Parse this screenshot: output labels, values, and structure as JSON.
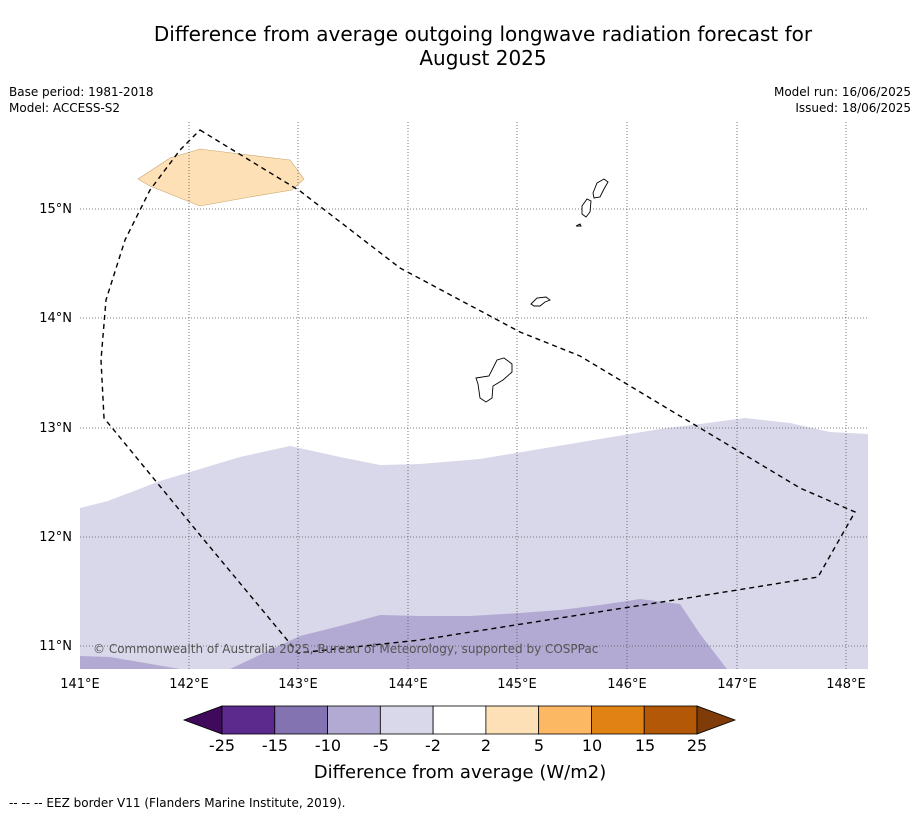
{
  "title": {
    "line1": "Difference from average outgoing longwave radiation forecast for",
    "line2": "August 2025"
  },
  "meta": {
    "base_period": "Base period: 1981-2018",
    "model": "Model: ACCESS-S2",
    "model_run": "Model run: 16/06/2025",
    "issued": "Issued: 18/06/2025"
  },
  "map": {
    "lon_labels": [
      "141°E",
      "142°E",
      "143°E",
      "144°E",
      "145°E",
      "146°E",
      "147°E",
      "148°E"
    ],
    "lat_labels": [
      "15°N",
      "14°N",
      "13°N",
      "12°N",
      "11°N"
    ],
    "copyright": "© Commonwealth of Australia 2025, Bureau of Meteorology, supported by COSPPac"
  },
  "colorbar": {
    "title": "Difference from average (W/m2)",
    "ticks": [
      "-25",
      "-15",
      "-10",
      "-5",
      "-2",
      "2",
      "5",
      "10",
      "15",
      "25"
    ],
    "colors": [
      "#3f0a5c",
      "#5b2a8c",
      "#8473b1",
      "#b2aad3",
      "#d8d8ea",
      "#ffffff",
      "#fde0b6",
      "#fdb863",
      "#e08214",
      "#b35806",
      "#7f3b08"
    ]
  },
  "footnote": "--  --  -- EEZ border V11 (Flanders Marine Institute, 2019)."
}
